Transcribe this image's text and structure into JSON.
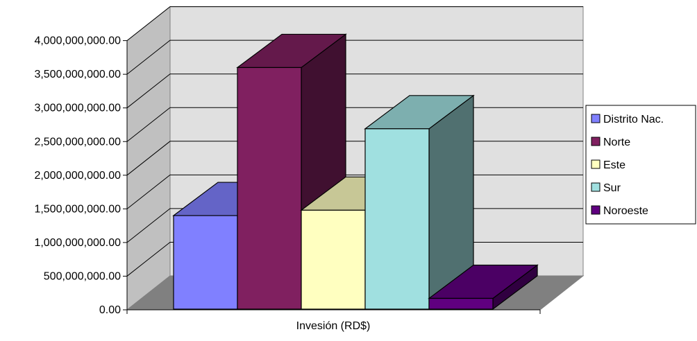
{
  "chart_data": {
    "type": "bar",
    "title": "",
    "xlabel": "Invesión (RD$)",
    "ylabel": "",
    "ylim": [
      0,
      4000000000
    ],
    "yticks": [
      {
        "value": 0,
        "label": "0.00"
      },
      {
        "value": 500000000,
        "label": "500,000,000.00"
      },
      {
        "value": 1000000000,
        "label": "1,000,000,000.00"
      },
      {
        "value": 1500000000,
        "label": "1,500,000,000.00"
      },
      {
        "value": 2000000000,
        "label": "2,000,000,000.00"
      },
      {
        "value": 2500000000,
        "label": "2,500,000,000.00"
      },
      {
        "value": 3000000000,
        "label": "3,000,000,000.00"
      },
      {
        "value": 3500000000,
        "label": "3,500,000,000.00"
      },
      {
        "value": 4000000000,
        "label": "4,000,000,000.00"
      }
    ],
    "grid": true,
    "three_d": true,
    "legend_position": "right",
    "categories": [
      "Invesión (RD$)"
    ],
    "series": [
      {
        "name": "Distrito Nac.",
        "values": [
          1400000000
        ],
        "color": "#8080ff"
      },
      {
        "name": "Norte",
        "values": [
          3600000000
        ],
        "color": "#802060"
      },
      {
        "name": "Este",
        "values": [
          1480000000
        ],
        "color": "#ffffc0"
      },
      {
        "name": "Sur",
        "values": [
          2690000000
        ],
        "color": "#a0e0e0"
      },
      {
        "name": "Noroeste",
        "values": [
          170000000
        ],
        "color": "#600080"
      }
    ]
  }
}
